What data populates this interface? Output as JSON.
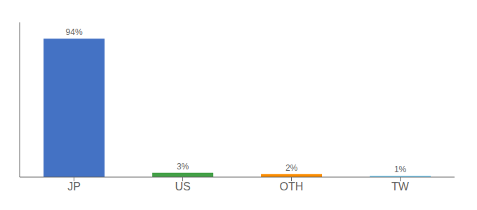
{
  "chart_data": {
    "type": "bar",
    "categories": [
      "JP",
      "US",
      "OTH",
      "TW"
    ],
    "values": [
      94,
      3,
      2,
      1
    ],
    "value_labels": [
      "94%",
      "3%",
      "2%",
      "1%"
    ],
    "colors": [
      "#4472c4",
      "#43a047",
      "#fb8c00",
      "#81d4fa"
    ],
    "ylim": [
      0,
      105
    ],
    "data_labels": true,
    "tick_labels": "x",
    "grid": false
  }
}
